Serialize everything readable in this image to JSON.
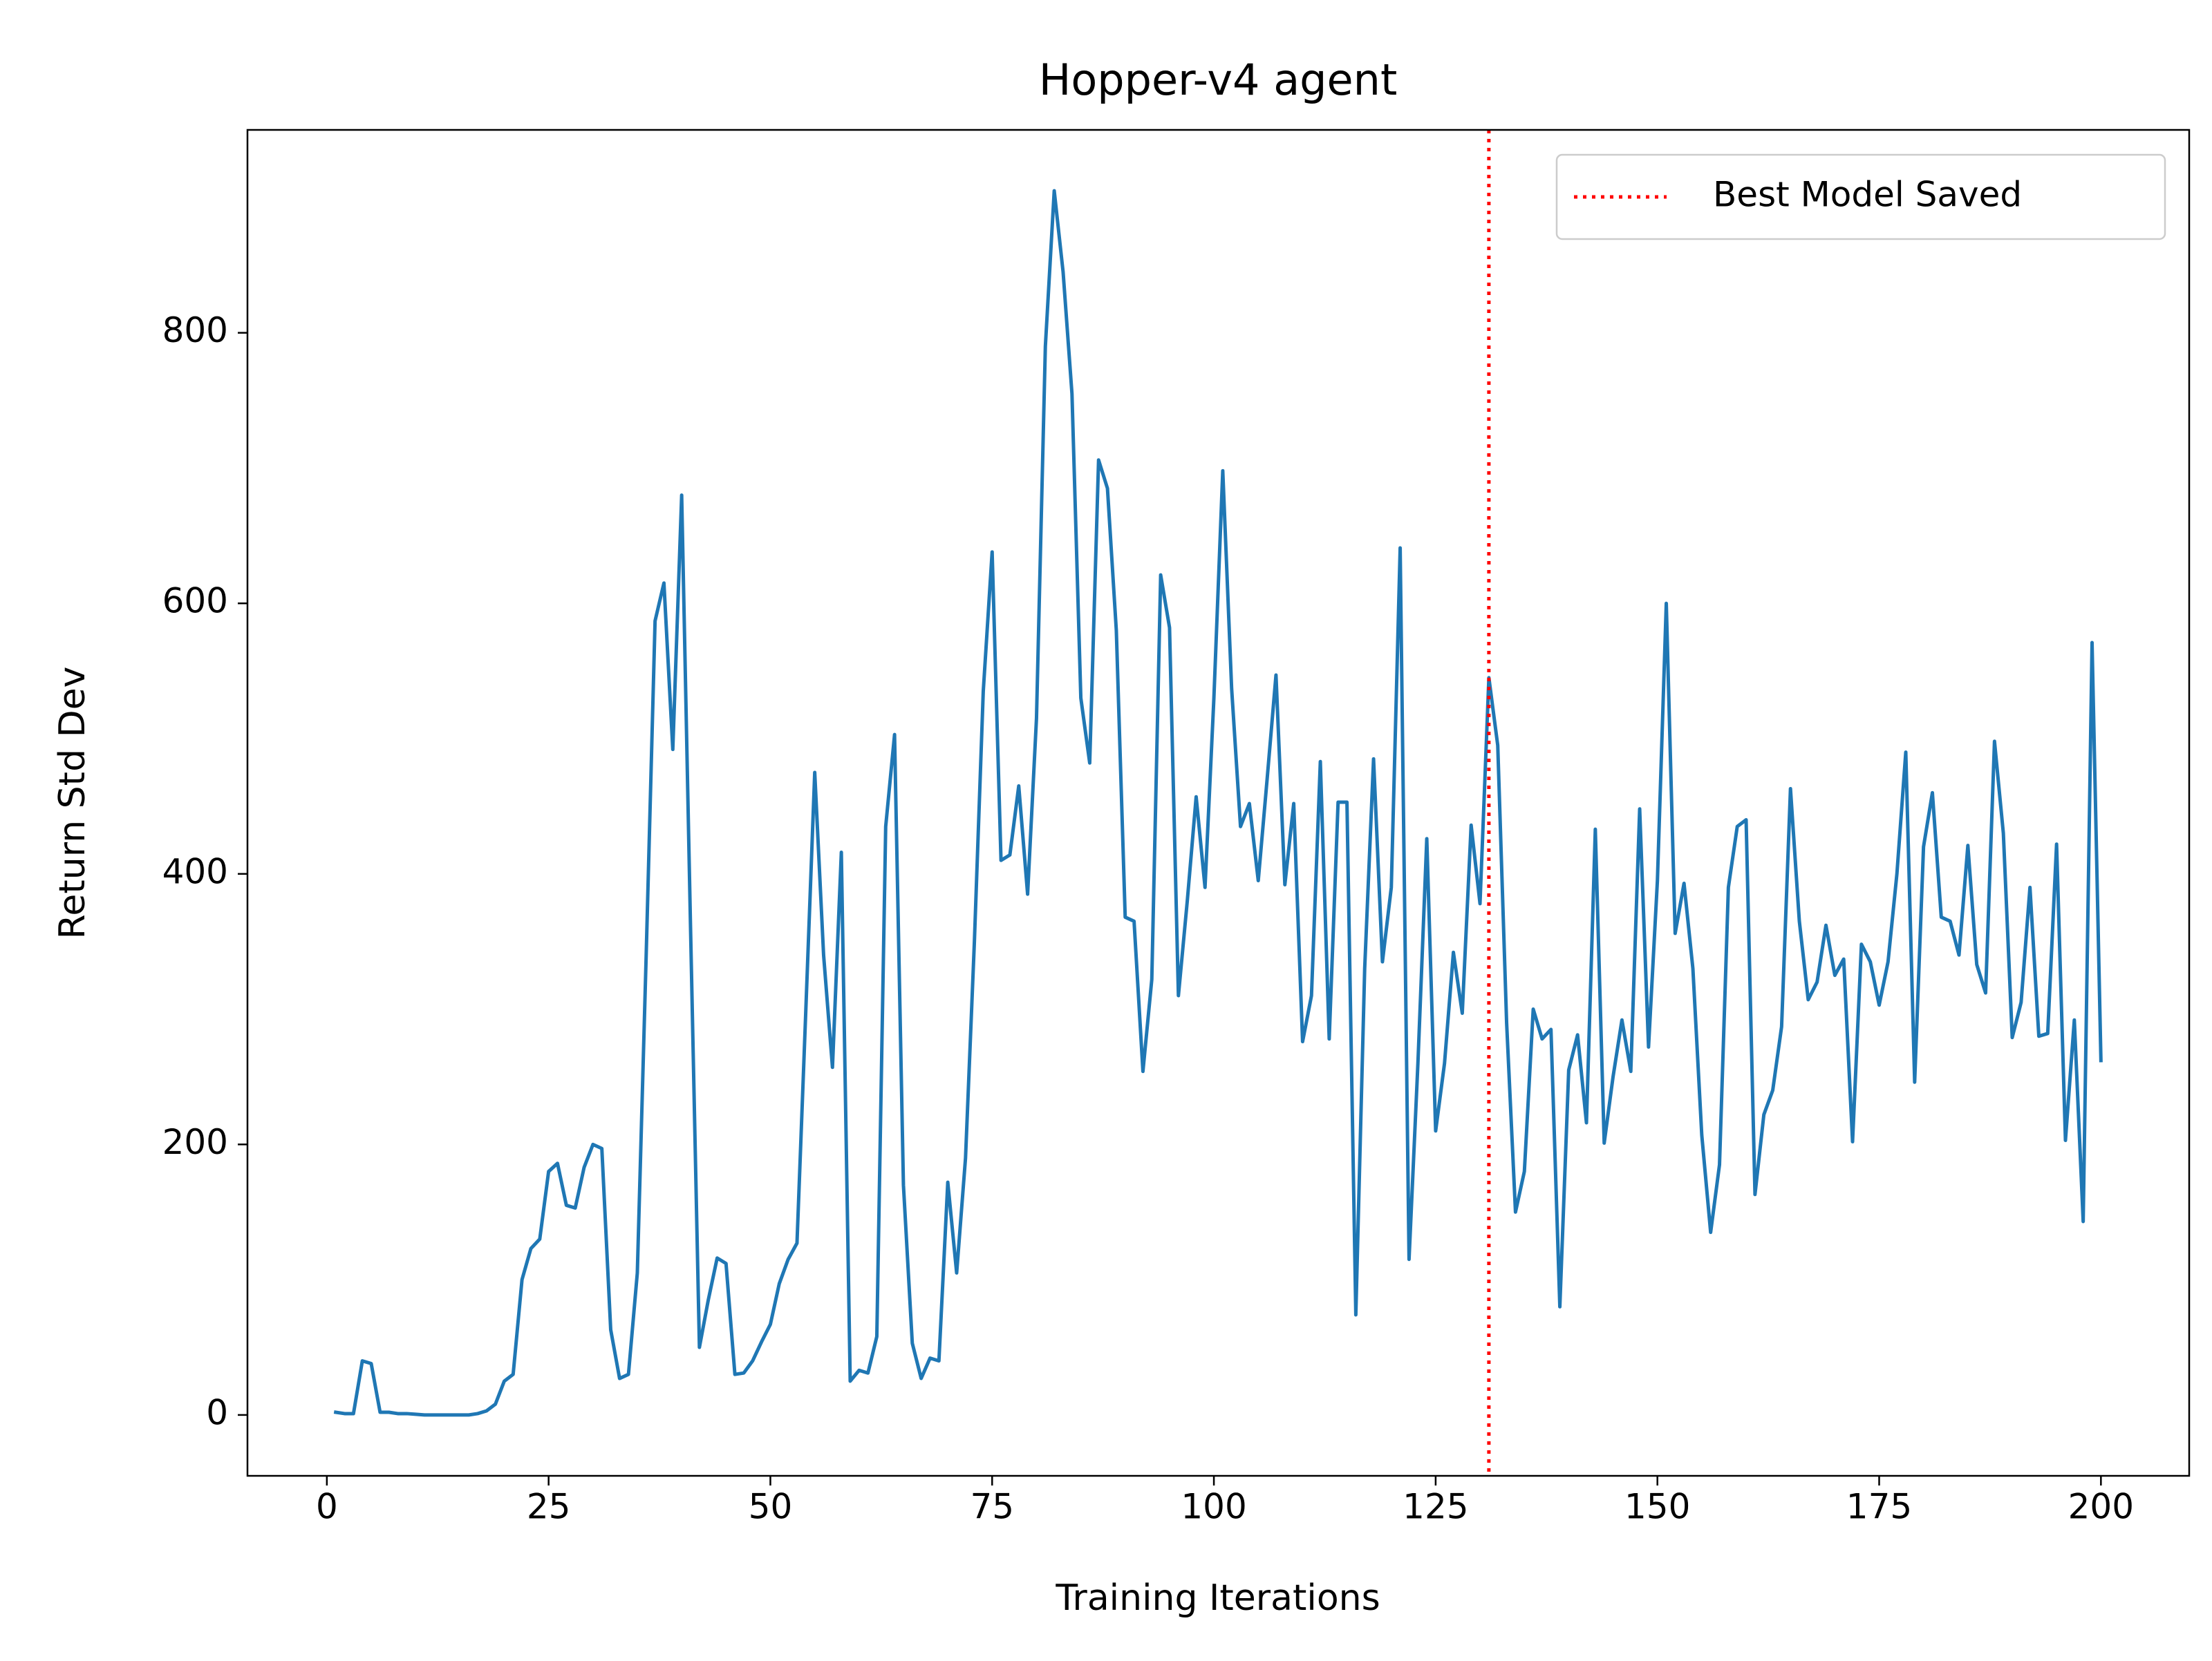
{
  "chart_data": {
    "type": "line",
    "title": "Hopper-v4 agent",
    "x_label": "Training Iterations",
    "y_label": "Return Std Dev",
    "xlim": [
      -8.95,
      209.95
    ],
    "ylim": [
      -45,
      950
    ],
    "xticks": [
      0,
      25,
      50,
      75,
      100,
      125,
      150,
      175,
      200
    ],
    "yticks": [
      0,
      200,
      400,
      600,
      800
    ],
    "legend_position": "upper right",
    "x": [
      1,
      2,
      3,
      4,
      5,
      6,
      7,
      8,
      9,
      10,
      11,
      12,
      13,
      14,
      15,
      16,
      17,
      18,
      19,
      20,
      21,
      22,
      23,
      24,
      25,
      26,
      27,
      28,
      29,
      30,
      31,
      32,
      33,
      34,
      35,
      36,
      37,
      38,
      39,
      40,
      41,
      42,
      43,
      44,
      45,
      46,
      47,
      48,
      49,
      50,
      51,
      52,
      53,
      54,
      55,
      56,
      57,
      58,
      59,
      60,
      61,
      62,
      63,
      64,
      65,
      66,
      67,
      68,
      69,
      70,
      71,
      72,
      73,
      74,
      75,
      76,
      77,
      78,
      79,
      80,
      81,
      82,
      83,
      84,
      85,
      86,
      87,
      88,
      89,
      90,
      91,
      92,
      93,
      94,
      95,
      96,
      97,
      98,
      99,
      100,
      101,
      102,
      103,
      104,
      105,
      106,
      107,
      108,
      109,
      110,
      111,
      112,
      113,
      114,
      115,
      116,
      117,
      118,
      119,
      120,
      121,
      122,
      123,
      124,
      125,
      126,
      127,
      128,
      129,
      130,
      131,
      132,
      133,
      134,
      135,
      136,
      137,
      138,
      139,
      140,
      141,
      142,
      143,
      144,
      145,
      146,
      147,
      148,
      149,
      150,
      151,
      152,
      153,
      154,
      155,
      156,
      157,
      158,
      159,
      160,
      161,
      162,
      163,
      164,
      165,
      166,
      167,
      168,
      169,
      170,
      171,
      172,
      173,
      174,
      175,
      176,
      177,
      178,
      179,
      180,
      181,
      182,
      183,
      184,
      185,
      186,
      187,
      188,
      189,
      190,
      191,
      192,
      193,
      194,
      195,
      196,
      197,
      198,
      199,
      200
    ],
    "series": [
      {
        "name": "Return Std Dev",
        "color": "#1f77b4",
        "values": [
          2,
          1,
          1,
          40,
          38,
          2,
          2,
          1,
          1,
          0.5,
          0,
          0,
          0,
          0,
          0,
          0,
          1,
          3,
          8,
          25,
          30,
          100,
          123,
          130,
          180,
          186,
          155,
          153,
          183,
          200,
          197,
          63,
          27,
          30,
          105,
          340,
          587,
          615,
          492,
          680,
          360,
          50,
          85,
          116,
          112,
          30,
          31,
          40,
          54,
          67,
          97,
          115,
          127,
          300,
          475,
          340,
          257,
          416,
          25,
          33,
          31,
          58,
          435,
          503,
          170,
          53,
          27,
          42,
          40,
          172,
          105,
          190,
          350,
          535,
          638,
          410,
          414,
          465,
          385,
          515,
          790,
          905,
          845,
          755,
          530,
          482,
          706,
          685,
          580,
          368,
          365,
          254,
          322,
          621,
          582,
          310,
          380,
          457,
          390,
          530,
          698,
          537,
          435,
          452,
          395,
          470,
          547,
          392,
          452,
          276,
          310,
          483,
          278,
          453,
          453,
          74,
          330,
          485,
          335,
          390,
          641,
          115,
          260,
          426,
          210,
          260,
          342,
          297,
          436,
          378,
          545,
          495,
          290,
          150,
          180,
          300,
          278,
          285,
          80,
          255,
          281,
          216,
          433,
          201,
          250,
          292,
          254,
          448,
          272,
          395,
          600,
          356,
          393,
          330,
          207,
          135,
          185,
          390,
          435,
          440,
          163,
          222,
          240,
          287,
          463,
          365,
          307,
          320,
          362,
          325,
          337,
          202,
          348,
          335,
          303,
          335,
          400,
          490,
          246,
          420,
          460,
          368,
          365,
          340,
          421,
          333,
          312,
          498,
          430,
          279,
          305,
          390,
          280,
          282,
          422,
          203,
          292,
          143,
          571,
          262
        ]
      }
    ],
    "best_model": {
      "x": 131,
      "label": "Best Model Saved",
      "color": "#ff0000"
    }
  }
}
